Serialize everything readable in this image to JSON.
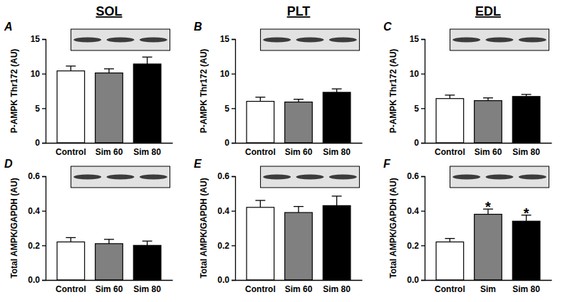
{
  "chart_data": [
    {
      "type": "bar",
      "title": "SOL",
      "annotations": [
        {
          "text": "A"
        }
      ],
      "y_label": "P-AMPK Thr172 (AU)",
      "categories": [
        "Control",
        "Sim 60",
        "Sim 80"
      ],
      "values": [
        10.4,
        10.1,
        11.4
      ],
      "errors": [
        0.7,
        0.6,
        1.0
      ],
      "colors": [
        "#ffffff",
        "#808080",
        "#000000"
      ],
      "ylim": [
        0,
        15
      ],
      "yticks": [
        0,
        5,
        10,
        15
      ]
    },
    {
      "type": "bar",
      "title": "PLT",
      "annotations": [
        {
          "text": "B"
        }
      ],
      "y_label": "P-AMPK Thr172 (AU)",
      "categories": [
        "Control",
        "Sim 60",
        "Sim 80"
      ],
      "values": [
        6.0,
        5.9,
        7.3
      ],
      "errors": [
        0.6,
        0.4,
        0.5
      ],
      "colors": [
        "#ffffff",
        "#808080",
        "#000000"
      ],
      "ylim": [
        0,
        15
      ],
      "yticks": [
        0,
        5,
        10,
        15
      ]
    },
    {
      "type": "bar",
      "title": "EDL",
      "annotations": [
        {
          "text": "C"
        }
      ],
      "y_label": "P-AMPK Thr172 (AU)",
      "categories": [
        "Control",
        "Sim 60",
        "Sim 80"
      ],
      "values": [
        6.4,
        6.1,
        6.7
      ],
      "errors": [
        0.5,
        0.4,
        0.3
      ],
      "colors": [
        "#ffffff",
        "#808080",
        "#000000"
      ],
      "ylim": [
        0,
        15
      ],
      "yticks": [
        0,
        5,
        10,
        15
      ]
    },
    {
      "type": "bar",
      "annotations": [
        {
          "text": "D"
        }
      ],
      "y_label": "Total AMPK/GAPDH (AU)",
      "categories": [
        "Control",
        "Sim 60",
        "Sim 80"
      ],
      "values": [
        0.22,
        0.21,
        0.2
      ],
      "errors": [
        0.025,
        0.025,
        0.025
      ],
      "colors": [
        "#ffffff",
        "#808080",
        "#000000"
      ],
      "ylim": [
        0,
        0.6
      ],
      "yticks": [
        {
          "value": 0,
          "label": "0.0"
        },
        0.2,
        0.4,
        0.6
      ]
    },
    {
      "type": "bar",
      "annotations": [
        {
          "text": "E"
        }
      ],
      "y_label": "Total AMPK/GAPDH (AU)",
      "categories": [
        "Control",
        "Sim 60",
        "Sim 80"
      ],
      "values": [
        0.42,
        0.39,
        0.43
      ],
      "errors": [
        0.04,
        0.035,
        0.055
      ],
      "colors": [
        "#ffffff",
        "#808080",
        "#000000"
      ],
      "ylim": [
        0,
        0.6
      ],
      "yticks": [
        {
          "value": 0,
          "label": "0.0"
        },
        0.2,
        0.4,
        0.6
      ]
    },
    {
      "type": "bar",
      "annotations": [
        {
          "text": "F"
        },
        {
          "text": "*",
          "category": 1
        },
        {
          "text": "*",
          "category": 2
        }
      ],
      "y_label": "Total AMPK/GAPDH (AU)",
      "categories": [
        "Control",
        "Sim",
        "Sim 80"
      ],
      "values": [
        0.22,
        0.38,
        0.34
      ],
      "errors": [
        0.02,
        0.03,
        0.035
      ],
      "colors": [
        "#ffffff",
        "#808080",
        "#000000"
      ],
      "ylim": [
        0,
        0.6
      ],
      "yticks": [
        {
          "value": 0,
          "label": "0.0"
        },
        0.2,
        0.4,
        0.6
      ]
    }
  ]
}
